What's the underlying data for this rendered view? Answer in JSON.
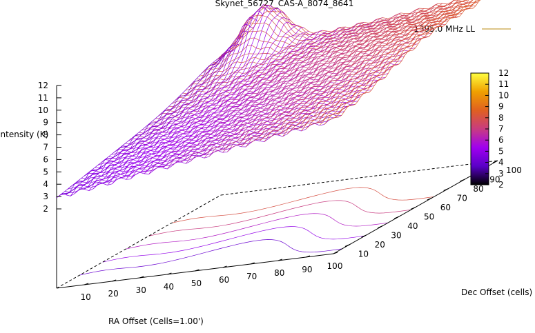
{
  "chart_data": {
    "type": "surface",
    "title": "Skynet_56727_CAS-A_8074_8641",
    "zlabel": "Intensity (K)",
    "xlabel": "RA Offset (Cells=1.00')",
    "ylabel": "Dec Offset (cells)",
    "legend": {
      "entries": [
        "1395.0 MHz LL"
      ],
      "placement": "top-right"
    },
    "x_ticks": [
      10,
      20,
      30,
      40,
      50,
      60,
      70,
      80,
      90,
      100
    ],
    "y_ticks": [
      10,
      20,
      30,
      40,
      50,
      60,
      70,
      80,
      90,
      100
    ],
    "z_ticks": [
      2,
      3,
      4,
      5,
      6,
      7,
      8,
      9,
      10,
      11,
      12
    ],
    "colorbar_ticks": [
      2,
      3,
      4,
      5,
      6,
      7,
      8,
      9,
      10,
      11,
      12
    ],
    "xlim": [
      0,
      100
    ],
    "ylim": [
      0,
      100
    ],
    "zlim": [
      2,
      12
    ],
    "colormap": [
      "#000000",
      "#5a00c8",
      "#a000f0",
      "#c83c80",
      "#e06020",
      "#f0a000",
      "#ffff40"
    ],
    "grid_points": 61,
    "surface": {
      "baseline": 2.9,
      "ra_gradient": 0.035,
      "dec_gradient": 0.03,
      "peak": {
        "x": 18,
        "y": 95,
        "amplitude": 3.6,
        "width": 7
      },
      "ridge": {
        "amplitude": 0.8,
        "width": 18
      }
    },
    "contour_levels": [
      3,
      4,
      5,
      6,
      7
    ]
  }
}
